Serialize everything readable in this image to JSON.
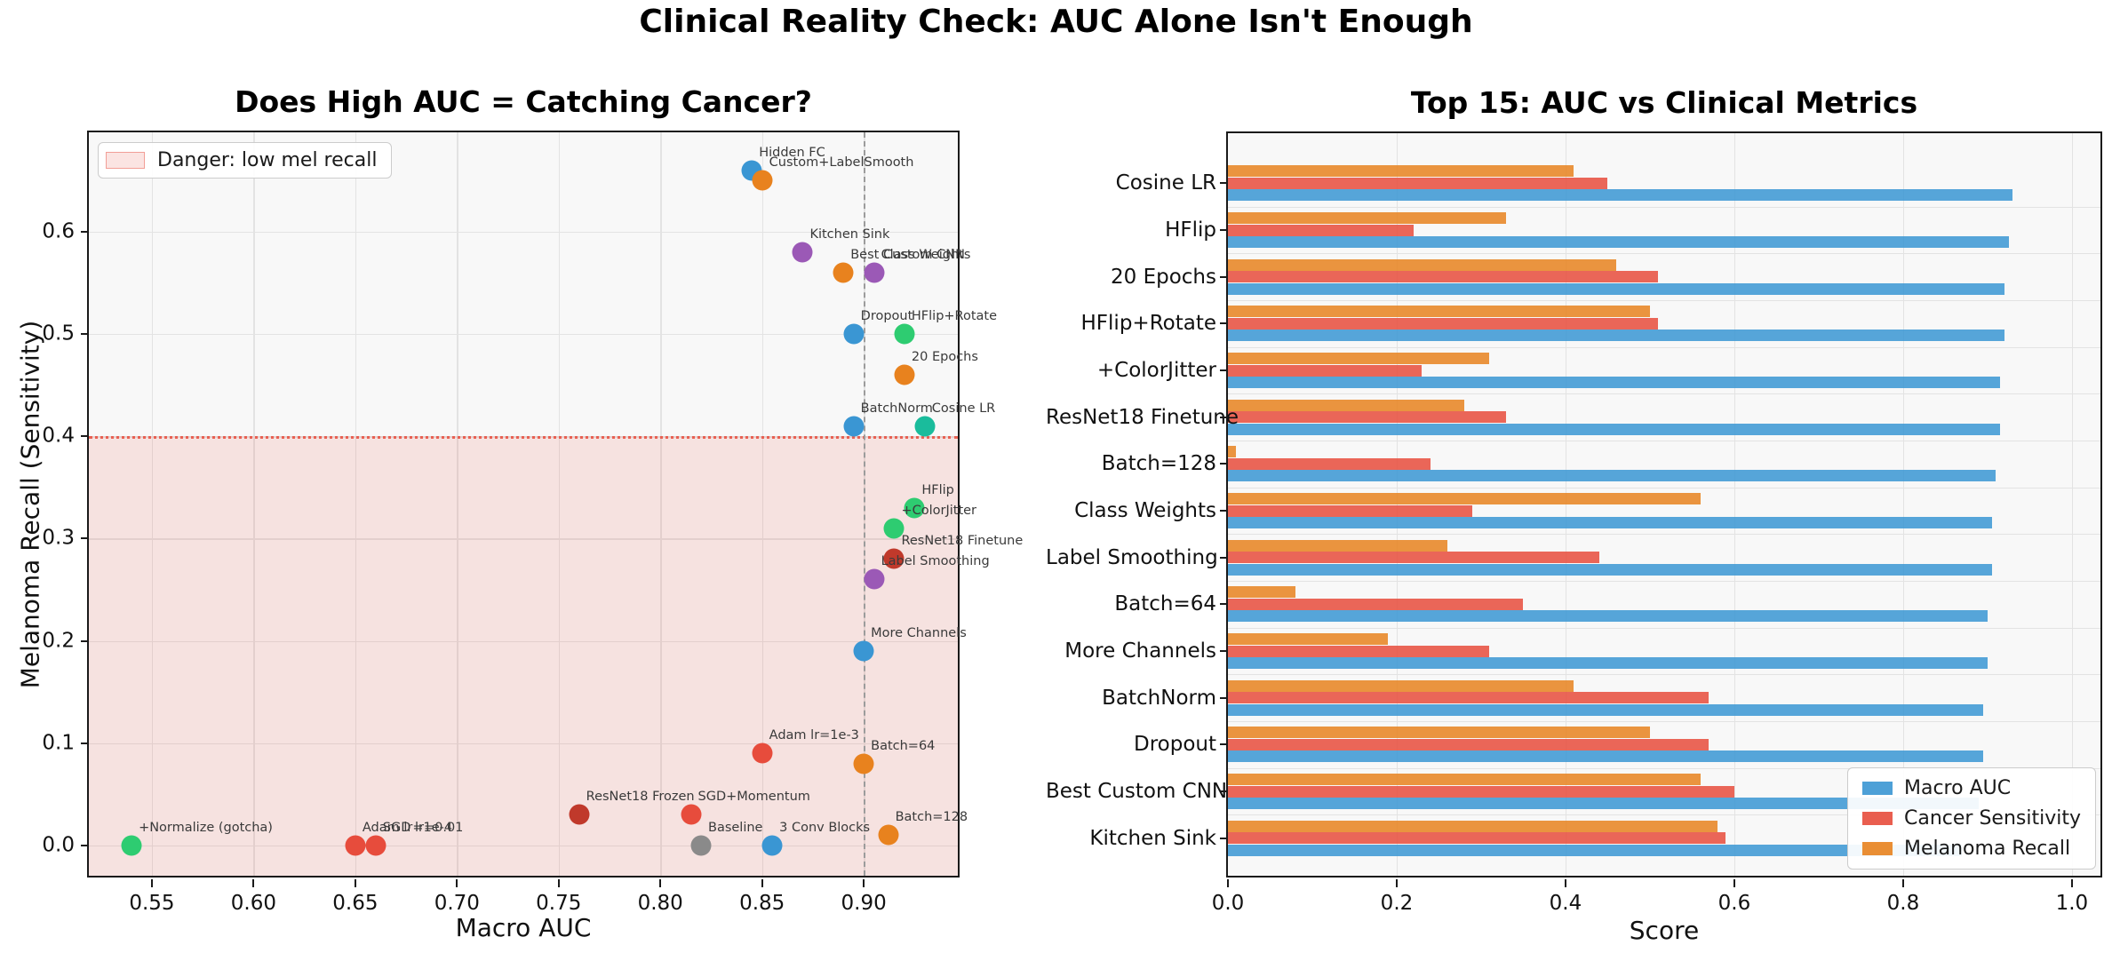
{
  "figure": {
    "suptitle": "Clinical Reality Check: AUC Alone Isn't Enough"
  },
  "palette": {
    "blue": "#3a96d3",
    "orange": "#e8821e",
    "green": "#2ecc71",
    "teal": "#1abc9c",
    "purple": "#9b59b6",
    "red": "#e74c3c",
    "darkred": "#c0392b",
    "gray": "#8a8a8a",
    "danger_pink": "#e74c3c",
    "grid": "#e3e3e3",
    "spine": "#1a1a1a"
  },
  "chart_data": [
    {
      "type": "scatter",
      "title": "Does High AUC = Catching Cancer?",
      "xlabel": "Macro AUC",
      "ylabel": "Melanoma Recall (Sensitivity)",
      "xlim": [
        0.519,
        0.948
      ],
      "ylim": [
        -0.033,
        0.697
      ],
      "grid": true,
      "xticks": [
        {
          "v": 0.55,
          "l": "0.55"
        },
        {
          "v": 0.6,
          "l": "0.60"
        },
        {
          "v": 0.65,
          "l": "0.65"
        },
        {
          "v": 0.7,
          "l": "0.70"
        },
        {
          "v": 0.75,
          "l": "0.75"
        },
        {
          "v": 0.8,
          "l": "0.80"
        },
        {
          "v": 0.85,
          "l": "0.85"
        },
        {
          "v": 0.9,
          "l": "0.90"
        }
      ],
      "yticks": [
        {
          "v": 0.0,
          "l": "0.0"
        },
        {
          "v": 0.1,
          "l": "0.1"
        },
        {
          "v": 0.2,
          "l": "0.2"
        },
        {
          "v": 0.3,
          "l": "0.3"
        },
        {
          "v": 0.4,
          "l": "0.4"
        },
        {
          "v": 0.5,
          "l": "0.5"
        },
        {
          "v": 0.6,
          "l": "0.6"
        }
      ],
      "danger": {
        "max": 0.4,
        "label": "Danger: low mel recall"
      },
      "vline_x": 0.9,
      "points": [
        {
          "label": "Hidden FC",
          "x": 0.845,
          "y": 0.66,
          "c": "blue"
        },
        {
          "label": "Custom+LabelSmooth",
          "x": 0.85,
          "y": 0.65,
          "c": "orange"
        },
        {
          "label": "Kitchen Sink",
          "x": 0.87,
          "y": 0.58,
          "c": "purple"
        },
        {
          "label": "Best Custom CNN",
          "x": 0.89,
          "y": 0.56,
          "c": "orange"
        },
        {
          "label": "Class Weights",
          "x": 0.905,
          "y": 0.56,
          "c": "purple"
        },
        {
          "label": "Dropout",
          "x": 0.895,
          "y": 0.5,
          "c": "blue"
        },
        {
          "label": "HFlip+Rotate",
          "x": 0.92,
          "y": 0.5,
          "c": "green"
        },
        {
          "label": "20 Epochs",
          "x": 0.92,
          "y": 0.46,
          "c": "orange"
        },
        {
          "label": "BatchNorm",
          "x": 0.895,
          "y": 0.41,
          "c": "blue"
        },
        {
          "label": "Cosine LR",
          "x": 0.93,
          "y": 0.41,
          "c": "teal"
        },
        {
          "label": "HFlip",
          "x": 0.925,
          "y": 0.33,
          "c": "green"
        },
        {
          "label": "+ColorJitter",
          "x": 0.915,
          "y": 0.31,
          "c": "green"
        },
        {
          "label": "ResNet18 Finetune",
          "x": 0.915,
          "y": 0.28,
          "c": "darkred"
        },
        {
          "label": "Label Smoothing",
          "x": 0.905,
          "y": 0.26,
          "c": "purple"
        },
        {
          "label": "More Channels",
          "x": 0.9,
          "y": 0.19,
          "c": "blue"
        },
        {
          "label": "Adam lr=1e-3",
          "x": 0.85,
          "y": 0.09,
          "c": "red"
        },
        {
          "label": "Batch=64",
          "x": 0.9,
          "y": 0.08,
          "c": "orange"
        },
        {
          "label": "ResNet18 Frozen",
          "x": 0.76,
          "y": 0.03,
          "c": "darkred"
        },
        {
          "label": "SGD+Momentum",
          "x": 0.815,
          "y": 0.03,
          "c": "red"
        },
        {
          "label": "Baseline",
          "x": 0.82,
          "y": 0.0,
          "c": "gray"
        },
        {
          "label": "3 Conv Blocks",
          "x": 0.855,
          "y": 0.0,
          "c": "blue"
        },
        {
          "label": "Batch=128",
          "x": 0.912,
          "y": 0.01,
          "c": "orange"
        },
        {
          "label": "+Normalize (gotcha)",
          "x": 0.54,
          "y": 0.0,
          "c": "green"
        },
        {
          "label": "Adam lr=1e-4",
          "x": 0.65,
          "y": 0.0,
          "c": "red"
        },
        {
          "label": "SGD lr=0.01",
          "x": 0.66,
          "y": 0.0,
          "c": "red"
        }
      ]
    },
    {
      "type": "bar",
      "title": "Top 15: AUC vs Clinical Metrics",
      "xlabel": "Score",
      "xlim": [
        0,
        1.038
      ],
      "xticks": [
        {
          "v": 0.0,
          "l": "0.0"
        },
        {
          "v": 0.2,
          "l": "0.2"
        },
        {
          "v": 0.4,
          "l": "0.4"
        },
        {
          "v": 0.6,
          "l": "0.6"
        },
        {
          "v": 0.8,
          "l": "0.8"
        },
        {
          "v": 1.0,
          "l": "1.0"
        }
      ],
      "categories": [
        "Cosine LR",
        "HFlip",
        "20 Epochs",
        "HFlip+Rotate",
        "+ColorJitter",
        "ResNet18 Finetune",
        "Batch=128",
        "Class Weights",
        "Label Smoothing",
        "Batch=64",
        "More Channels",
        "BatchNorm",
        "Dropout",
        "Best Custom CNN",
        "Kitchen Sink"
      ],
      "series": [
        {
          "name": "Macro AUC",
          "color": "blue",
          "values": [
            0.93,
            0.925,
            0.92,
            0.92,
            0.915,
            0.915,
            0.91,
            0.905,
            0.905,
            0.9,
            0.9,
            0.895,
            0.895,
            0.89,
            0.87
          ]
        },
        {
          "name": "Cancer Sensitivity",
          "color": "red",
          "values": [
            0.45,
            0.22,
            0.51,
            0.51,
            0.23,
            0.33,
            0.24,
            0.29,
            0.44,
            0.35,
            0.31,
            0.57,
            0.57,
            0.6,
            0.59
          ]
        },
        {
          "name": "Melanoma Recall",
          "color": "orange",
          "values": [
            0.41,
            0.33,
            0.46,
            0.5,
            0.31,
            0.28,
            0.01,
            0.56,
            0.26,
            0.08,
            0.19,
            0.41,
            0.5,
            0.56,
            0.58
          ]
        }
      ]
    }
  ]
}
